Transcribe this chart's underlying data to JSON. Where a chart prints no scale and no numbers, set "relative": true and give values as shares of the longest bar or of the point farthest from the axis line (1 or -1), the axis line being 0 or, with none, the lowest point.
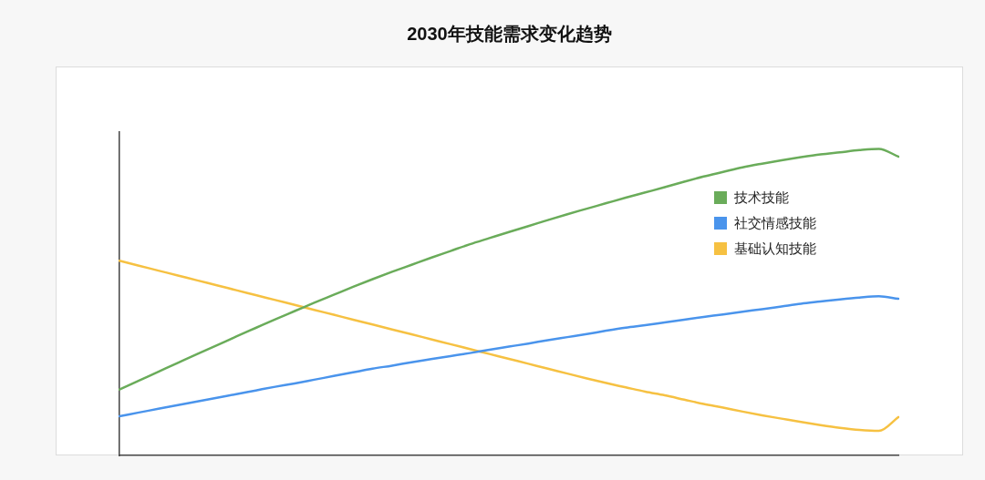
{
  "chart_data": {
    "type": "line",
    "title": "2030年技能需求变化趋势",
    "relative": true,
    "tick_labels": false,
    "legend": "top right",
    "marker": "none",
    "line_style": "solid",
    "categories": [
      null,
      null,
      null,
      null,
      null,
      null,
      null,
      null,
      null,
      null,
      null,
      null,
      null,
      null,
      null,
      null,
      null,
      null,
      null,
      null,
      null,
      null,
      null,
      null,
      null,
      null,
      null,
      null,
      null,
      null,
      null,
      null,
      null,
      null,
      null,
      null,
      null,
      null,
      null,
      null,
      null
    ],
    "series": [
      {
        "name": "技术技能",
        "color": "#6aac5a",
        "values": [
          0.215,
          0.244,
          0.273,
          0.302,
          0.331,
          0.359,
          0.388,
          0.416,
          0.444,
          0.471,
          0.498,
          0.524,
          0.55,
          0.575,
          0.599,
          0.622,
          0.645,
          0.667,
          0.689,
          0.709,
          0.729,
          0.748,
          0.768,
          0.787,
          0.805,
          0.823,
          0.841,
          0.858,
          0.875,
          0.893,
          0.91,
          0.925,
          0.94,
          0.952,
          0.963,
          0.973,
          0.982,
          0.989,
          0.996,
          1,
          0.975
        ]
      },
      {
        "name": "社交情感技能",
        "color": "#4a94ec",
        "values": [
          0.128,
          0.14,
          0.152,
          0.164,
          0.176,
          0.188,
          0.2,
          0.212,
          0.224,
          0.235,
          0.247,
          0.259,
          0.271,
          0.283,
          0.293,
          0.304,
          0.314,
          0.324,
          0.334,
          0.345,
          0.355,
          0.365,
          0.376,
          0.386,
          0.396,
          0.407,
          0.417,
          0.425,
          0.434,
          0.443,
          0.452,
          0.46,
          0.469,
          0.477,
          0.486,
          0.495,
          0.502,
          0.509,
          0.515,
          0.519,
          0.511
        ]
      },
      {
        "name": "基础认知技能",
        "color": "#f6c142",
        "values": [
          0.635,
          0.619,
          0.603,
          0.587,
          0.571,
          0.555,
          0.539,
          0.523,
          0.507,
          0.491,
          0.475,
          0.459,
          0.443,
          0.427,
          0.411,
          0.395,
          0.379,
          0.363,
          0.347,
          0.331,
          0.315,
          0.299,
          0.283,
          0.267,
          0.251,
          0.236,
          0.222,
          0.208,
          0.196,
          0.182,
          0.168,
          0.156,
          0.143,
          0.131,
          0.12,
          0.109,
          0.099,
          0.09,
          0.083,
          0.08,
          0.125
        ]
      }
    ]
  }
}
